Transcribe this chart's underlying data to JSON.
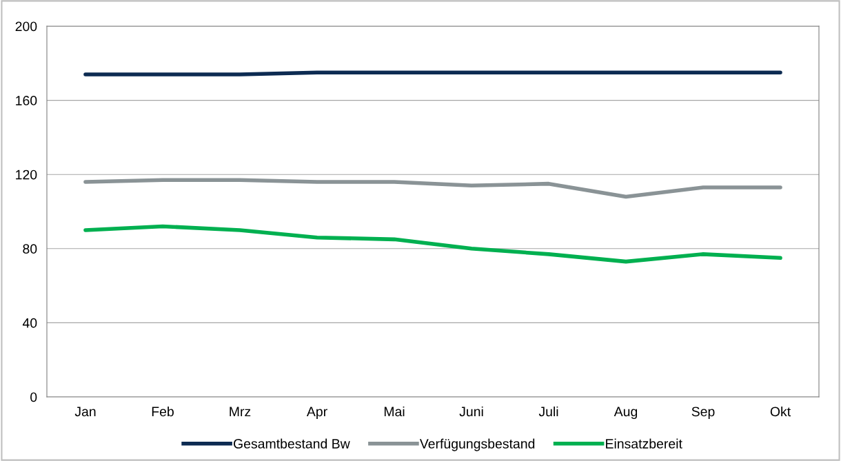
{
  "chart_data": {
    "type": "line",
    "categories": [
      "Jan",
      "Feb",
      "Mrz",
      "Apr",
      "Mai",
      "Juni",
      "Juli",
      "Aug",
      "Sep",
      "Okt"
    ],
    "series": [
      {
        "name": "Gesamtbestand Bw",
        "color": "#0d2b52",
        "values": [
          174,
          174,
          174,
          175,
          175,
          175,
          175,
          175,
          175,
          175
        ]
      },
      {
        "name": "Verfügungsbestand",
        "color": "#8a9396",
        "values": [
          116,
          117,
          117,
          116,
          116,
          114,
          115,
          108,
          113,
          113
        ]
      },
      {
        "name": "Einsatzbereit",
        "color": "#00b050",
        "values": [
          90,
          92,
          90,
          86,
          85,
          80,
          77,
          73,
          77,
          75
        ]
      }
    ],
    "ylim": [
      0,
      200
    ],
    "yticks": [
      0,
      40,
      80,
      120,
      160,
      200
    ],
    "grid": "y",
    "legend": "bottom",
    "marker": "none",
    "line_style": "solid"
  }
}
